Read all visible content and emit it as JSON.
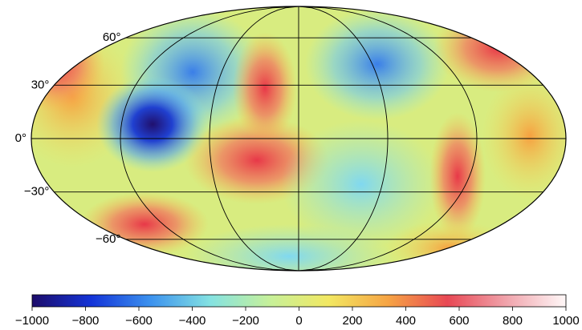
{
  "map": {
    "projection": "mollweide",
    "parallels": [
      {
        "value": 60,
        "label": "60°"
      },
      {
        "value": 30,
        "label": "30°"
      },
      {
        "value": 0,
        "label": "0°"
      },
      {
        "value": -30,
        "label": "−30°"
      },
      {
        "value": -60,
        "label": "−60°"
      }
    ],
    "meridians": [
      -120,
      -60,
      0,
      60,
      120
    ]
  },
  "colorbar": {
    "range": [
      -1000,
      1000
    ],
    "colors": [
      "#1c0c6a",
      "#1434d8",
      "#3c92ee",
      "#84e2e2",
      "#c6f09a",
      "#f2e862",
      "#f6a444",
      "#e84854",
      "#f0a4ac",
      "#fff8f8"
    ],
    "ticks": [
      {
        "value": -1000,
        "label": "−1000"
      },
      {
        "value": -800,
        "label": "−800"
      },
      {
        "value": -600,
        "label": "−600"
      },
      {
        "value": -400,
        "label": "−400"
      },
      {
        "value": -200,
        "label": "−200"
      },
      0,
      200,
      400,
      600,
      800,
      1000
    ]
  }
}
